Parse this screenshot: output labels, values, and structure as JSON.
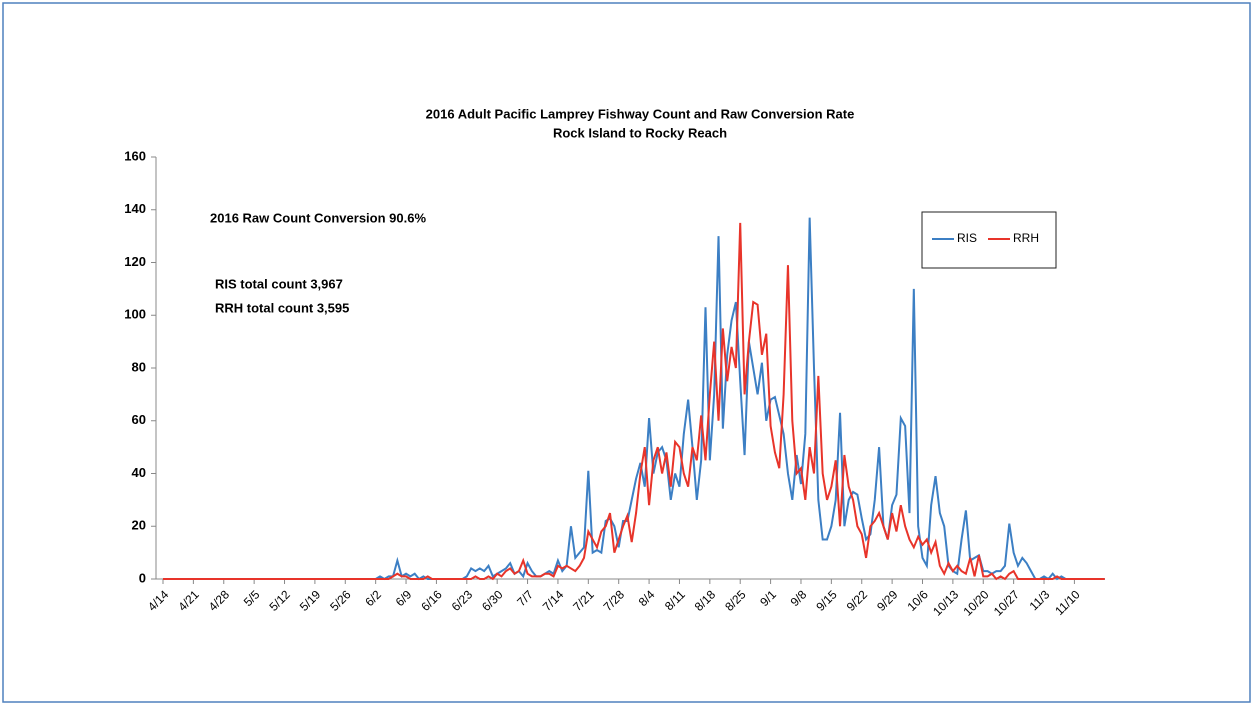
{
  "chart_data": {
    "type": "line",
    "title": "2016 Adult Pacific Lamprey Fishway Count  and Raw Conversion Rate",
    "subtitle": "Rock Island to Rocky Reach",
    "annotations": [
      "2016 Raw Count Conversion  90.6%",
      "RIS total count  3,967",
      "RRH total count  3,595"
    ],
    "categories": [
      "4/14",
      null,
      null,
      null,
      null,
      null,
      null,
      "4/21",
      null,
      null,
      null,
      null,
      null,
      null,
      "4/28",
      null,
      null,
      null,
      null,
      null,
      null,
      "5/5",
      null,
      null,
      null,
      null,
      null,
      null,
      "5/12",
      null,
      null,
      null,
      null,
      null,
      null,
      "5/19",
      null,
      null,
      null,
      null,
      null,
      null,
      "5/26",
      null,
      null,
      null,
      null,
      null,
      null,
      "6/2",
      null,
      null,
      null,
      null,
      null,
      null,
      "6/9",
      null,
      null,
      null,
      null,
      null,
      null,
      "6/16",
      null,
      null,
      null,
      null,
      null,
      null,
      "6/23",
      null,
      null,
      null,
      null,
      null,
      null,
      "6/30",
      null,
      null,
      null,
      null,
      null,
      null,
      "7/7",
      null,
      null,
      null,
      null,
      null,
      null,
      "7/14",
      null,
      null,
      null,
      null,
      null,
      null,
      "7/21",
      null,
      null,
      null,
      null,
      null,
      null,
      "7/28",
      null,
      null,
      null,
      null,
      null,
      null,
      "8/4",
      null,
      null,
      null,
      null,
      null,
      null,
      "8/11",
      null,
      null,
      null,
      null,
      null,
      null,
      "8/18",
      null,
      null,
      null,
      null,
      null,
      null,
      "8/25",
      null,
      null,
      null,
      null,
      null,
      null,
      "9/1",
      null,
      null,
      null,
      null,
      null,
      null,
      "9/8",
      null,
      null,
      null,
      null,
      null,
      null,
      "9/15",
      null,
      null,
      null,
      null,
      null,
      null,
      "9/22",
      null,
      null,
      null,
      null,
      null,
      null,
      "9/29",
      null,
      null,
      null,
      null,
      null,
      null,
      "10/6",
      null,
      null,
      null,
      null,
      null,
      null,
      "10/13",
      null,
      null,
      null,
      null,
      null,
      null,
      "10/20",
      null,
      null,
      null,
      null,
      null,
      null,
      "10/27",
      null,
      null,
      null,
      null,
      null,
      null,
      "11/3",
      null,
      null,
      null,
      null,
      null,
      null,
      "11/10",
      null,
      null,
      null,
      null,
      null,
      null,
      null
    ],
    "series": [
      {
        "name": "RIS",
        "color": "#3c7fc4",
        "values": [
          0,
          0,
          0,
          0,
          0,
          0,
          0,
          0,
          0,
          0,
          0,
          0,
          0,
          0,
          0,
          0,
          0,
          0,
          0,
          0,
          0,
          0,
          0,
          0,
          0,
          0,
          0,
          0,
          0,
          0,
          0,
          0,
          0,
          0,
          0,
          0,
          0,
          0,
          0,
          0,
          0,
          0,
          0,
          0,
          0,
          0,
          0,
          0,
          0,
          0,
          1,
          0,
          1,
          1,
          7,
          1,
          2,
          1,
          2,
          0,
          1,
          0,
          0,
          0,
          0,
          0,
          0,
          0,
          0,
          0,
          1,
          4,
          3,
          4,
          3,
          5,
          1,
          2,
          3,
          4,
          6,
          2,
          3,
          1,
          6,
          3,
          1,
          1,
          2,
          3,
          2,
          7,
          3,
          5,
          20,
          8,
          10,
          12,
          41,
          10,
          11,
          10,
          22,
          23,
          20,
          12,
          22,
          22,
          30,
          38,
          44,
          35,
          61,
          40,
          48,
          50,
          45,
          30,
          40,
          35,
          55,
          68,
          50,
          30,
          45,
          103,
          45,
          70,
          130,
          57,
          85,
          98,
          105,
          75,
          47,
          90,
          80,
          70,
          82,
          60,
          68,
          69,
          62,
          55,
          40,
          30,
          47,
          36,
          55,
          137,
          80,
          30,
          15,
          15,
          20,
          30,
          63,
          20,
          30,
          33,
          32,
          23,
          15,
          17,
          30,
          50,
          20,
          15,
          28,
          32,
          61,
          58,
          25,
          110,
          20,
          8,
          5,
          28,
          39,
          25,
          20,
          5,
          3,
          2,
          15,
          26,
          7,
          8,
          9,
          3,
          3,
          2,
          3,
          3,
          5,
          21,
          10,
          5,
          8,
          6,
          3,
          0,
          0,
          1,
          0,
          2,
          0,
          1,
          0,
          0,
          0,
          0,
          0,
          0,
          0,
          0,
          0,
          0
        ]
      },
      {
        "name": "RRH",
        "color": "#e8342a",
        "values": [
          0,
          0,
          0,
          0,
          0,
          0,
          0,
          0,
          0,
          0,
          0,
          0,
          0,
          0,
          0,
          0,
          0,
          0,
          0,
          0,
          0,
          0,
          0,
          0,
          0,
          0,
          0,
          0,
          0,
          0,
          0,
          0,
          0,
          0,
          0,
          0,
          0,
          0,
          0,
          0,
          0,
          0,
          0,
          0,
          0,
          0,
          0,
          0,
          0,
          0,
          0,
          0,
          0,
          1,
          2,
          1,
          1,
          0,
          0,
          0,
          0,
          1,
          0,
          0,
          0,
          0,
          0,
          0,
          0,
          0,
          0,
          0,
          1,
          0,
          0,
          1,
          0,
          2,
          1,
          3,
          4,
          2,
          3,
          7,
          2,
          1,
          1,
          1,
          2,
          2,
          1,
          5,
          4,
          5,
          4,
          3,
          5,
          8,
          18,
          15,
          12,
          18,
          20,
          25,
          10,
          15,
          20,
          24,
          14,
          25,
          40,
          50,
          28,
          45,
          50,
          40,
          48,
          35,
          52,
          50,
          40,
          35,
          50,
          45,
          62,
          45,
          70,
          90,
          60,
          95,
          75,
          88,
          80,
          135,
          70,
          90,
          105,
          104,
          85,
          93,
          58,
          48,
          42,
          70,
          119,
          60,
          40,
          42,
          30,
          50,
          40,
          77,
          40,
          30,
          35,
          45,
          20,
          47,
          35,
          30,
          20,
          17,
          8,
          20,
          22,
          25,
          20,
          15,
          25,
          18,
          28,
          20,
          15,
          12,
          16,
          13,
          15,
          10,
          14,
          5,
          2,
          6,
          3,
          5,
          3,
          2,
          8,
          1,
          9,
          1,
          1,
          2,
          0,
          1,
          0,
          2,
          3,
          0,
          0,
          0,
          0,
          0,
          0,
          0,
          0,
          0,
          1,
          0,
          0,
          0,
          0,
          0,
          0,
          0,
          0,
          0,
          0,
          0
        ]
      }
    ],
    "ylim": [
      0,
      160
    ],
    "yticks": [
      0,
      20,
      40,
      60,
      80,
      100,
      120,
      140,
      160
    ],
    "grid": false,
    "legend": "upper right"
  }
}
